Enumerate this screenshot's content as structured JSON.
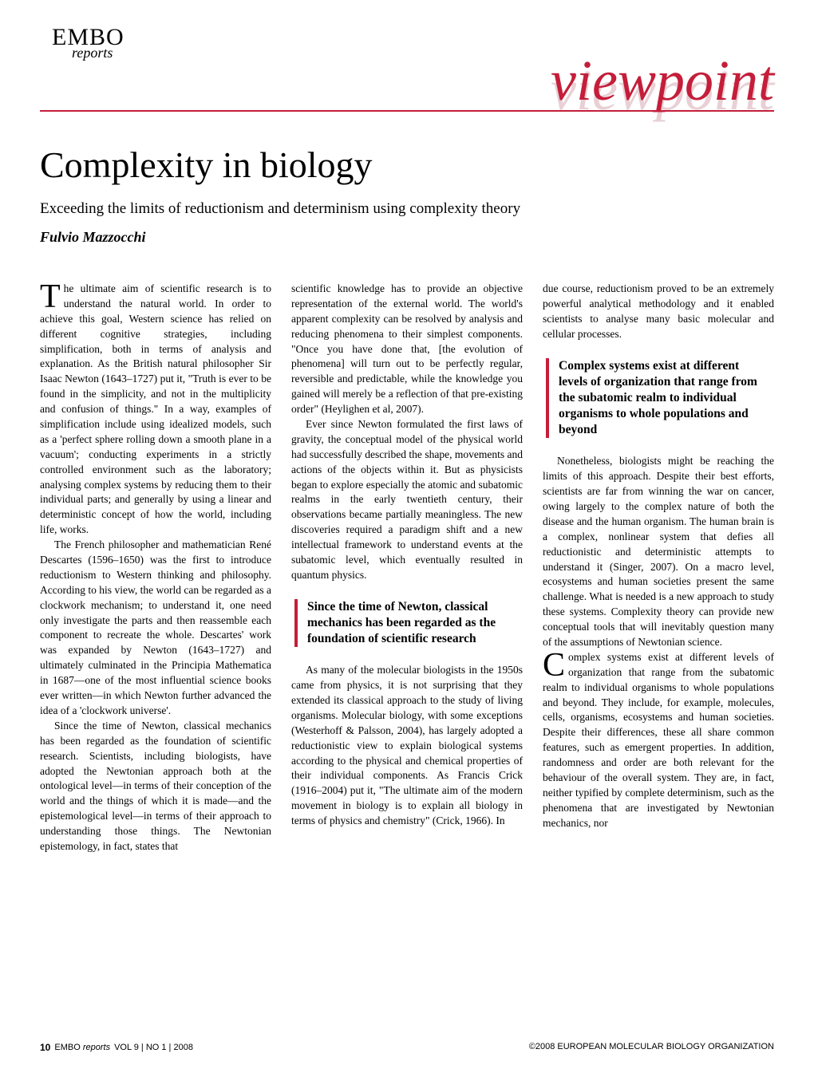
{
  "logo": {
    "main": "EMBO",
    "sub": "reports"
  },
  "section_banner": "viewpoint",
  "article": {
    "title": "Complexity in biology",
    "subtitle": "Exceeding the limits of reductionism and determinism using complexity theory",
    "author": "Fulvio Mazzocchi"
  },
  "columns": {
    "col1": {
      "dropcap": "T",
      "p1_first": "he ultimate aim of scientific research is to understand the natural world. In order to achieve this goal, Western science has relied on different cognitive strategies, including simplification, both in terms of analysis and explanation. As the British natural philosopher Sir Isaac Newton (1643–1727) put it, \"Truth is ever to be found in the simplicity, and not in the multiplicity and confusion of things.\" In a way, examples of simplification include using idealized models, such as a 'perfect sphere rolling down a smooth plane in a vacuum'; conducting experiments in a strictly controlled environment such as the laboratory; analysing complex systems by reducing them to their individual parts; and generally by using a linear and deterministic concept of how the world, including life, works.",
      "p2": "The French philosopher and mathematician René Descartes (1596–1650) was the first to introduce reductionism to Western thinking and philosophy. According to his view, the world can be regarded as a clockwork mechanism; to understand it, one need only investigate the parts and then reassemble each component to recreate the whole. Descartes' work was expanded by Newton (1643–1727) and ultimately culminated in the Principia Mathematica in 1687—one of the most influential science books ever written—in which Newton further advanced the idea of a 'clockwork universe'.",
      "p3": "Since the time of Newton, classical mechanics has been regarded as the foundation of scientific research. Scientists, including biologists, have adopted the Newtonian approach both at the ontological level—in terms of their conception of the world and the things of which it is made—and the epistemological level—in terms of their approach to understanding those things. The Newtonian epistemology, in fact, states that"
    },
    "col2": {
      "p1": "scientific knowledge has to provide an objective representation of the external world. The world's apparent complexity can be resolved by analysis and reducing phenomena to their simplest components. \"Once you have done that, [the evolution of phenomena] will turn out to be perfectly regular, reversible and predictable, while the knowledge you gained will merely be a reflection of that pre-existing order\" (Heylighen et al, 2007).",
      "p2": "Ever since Newton formulated the first laws of gravity, the conceptual model of the physical world had successfully described the shape, movements and actions of the objects within it. But as physicists began to explore especially the atomic and subatomic realms in the early twentieth century, their observations became partially meaningless. The new discoveries required a paradigm shift and a new intellectual framework to understand events at the subatomic level, which eventually resulted in quantum physics.",
      "pullquote": "Since the time of Newton, classical mechanics has been regarded as the foundation of scientific research",
      "p3": "As many of the molecular biologists in the 1950s came from physics, it is not surprising that they extended its classical approach to the study of living organisms. Molecular biology, with some exceptions (Westerhoff & Palsson, 2004), has largely adopted a reductionistic view to explain biological systems according to the physical and chemical properties of their individual components. As Francis Crick (1916–2004) put it, \"The ultimate aim of the modern movement in biology is to explain all biology in terms of physics and chemistry\" (Crick, 1966). In"
    },
    "col3": {
      "p1": "due course, reductionism proved to be an extremely powerful analytical methodology and it enabled scientists to analyse many basic molecular and cellular processes.",
      "pullquote": "Complex systems exist at different levels of organization that range from the subatomic realm to individual organisms to whole populations and beyond",
      "p2": "Nonetheless, biologists might be reaching the limits of this approach. Despite their best efforts, scientists are far from winning the war on cancer, owing largely to the complex nature of both the disease and the human organism. The human brain is a complex, nonlinear system that defies all reductionistic and deterministic attempts to understand it (Singer, 2007). On a macro level, ecosystems and human societies present the same challenge. What is needed is a new approach to study these systems. Complexity theory can provide new conceptual tools that will inevitably question many of the assumptions of Newtonian science.",
      "dropcap2": "C",
      "p3_after": "omplex systems exist at different levels of organization that range from the subatomic realm to individual organisms to whole populations and beyond. They include, for example, molecules, cells, organisms, ecosystems and human societies. Despite their differences, these all share common features, such as emergent properties. In addition, randomness and order are both relevant for the behaviour of the overall system. They are, in fact, neither typified by complete determinism, such as the phenomena that are investigated by Newtonian mechanics, nor"
    }
  },
  "footer": {
    "page": "10",
    "journal_name": "EMBO",
    "journal_sub": "reports",
    "vol_info": "VOL 9 | NO 1 | 2008",
    "copyright": "©2008 EUROPEAN MOLECULAR BIOLOGY ORGANIZATION"
  },
  "colors": {
    "accent": "#c41e3a",
    "accent_shadow": "#e8d0d5",
    "text": "#000000",
    "background": "#ffffff"
  }
}
